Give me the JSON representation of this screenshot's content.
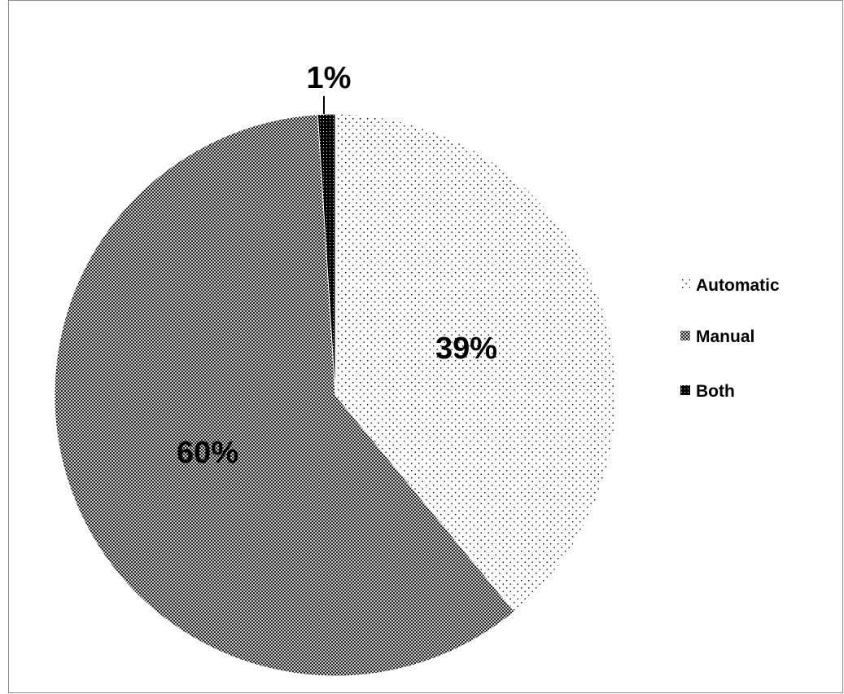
{
  "chart_data": {
    "type": "pie",
    "title": "",
    "slices": [
      {
        "label": "Automatic",
        "value": 39,
        "data_label": "39%",
        "fill": "dots"
      },
      {
        "label": "Manual",
        "value": 60,
        "data_label": "60%",
        "fill": "crosshatch"
      },
      {
        "label": "Both",
        "value": 1,
        "data_label": "1%",
        "fill": "dark"
      }
    ],
    "legend": {
      "position": "right",
      "entries": [
        "Automatic",
        "Manual",
        "Both"
      ]
    },
    "colors": {
      "ink": "#000000",
      "frame": "#8c8c8c",
      "background": "#ffffff"
    }
  }
}
